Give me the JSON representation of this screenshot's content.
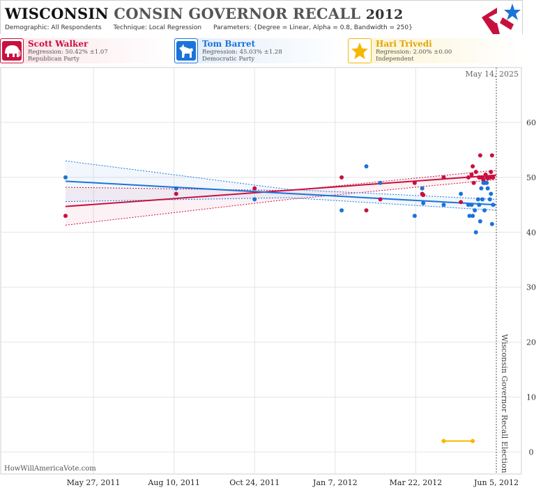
{
  "header": {
    "title_part1": "WISCONSIN",
    "title_part2": "CONSIN GOVERNOR RECALL",
    "title_part3": "2012",
    "demographic": "Demographic: All Respondents",
    "technique": "Technique: Local Regression",
    "parameters": "Parameters: {Degree = Linear, Alpha = 0.8, Bandwidth = 250}"
  },
  "candidates": [
    {
      "name": "Scott Walker",
      "regression": "Regression: 50.42% ±1.07",
      "party": "Republican Party",
      "color": "#c8103e",
      "icon": "elephant-icon"
    },
    {
      "name": "Tom Barret",
      "regression": "Regression: 45.03% ±1.28",
      "party": "Democratic Party",
      "color": "#1a73d9",
      "icon": "donkey-icon"
    },
    {
      "name": "Hari Trivedi",
      "regression": "Regression: 2.00% ±0.00",
      "party": "Independent",
      "color": "#f5b800",
      "icon": "star-icon"
    }
  ],
  "credit": "HowWillAmericaVote.com",
  "chart_data": {
    "type": "scatter",
    "title": "",
    "today_label": "May 14, 2025",
    "event_label": "Wisconsin Governor Recall Election",
    "event_date": "2012-06-05",
    "x_range": [
      "2011-05-01",
      "2012-06-05"
    ],
    "x_tick_labels": [
      "May 27, 2011",
      "Aug 10, 2011",
      "Oct 24, 2011",
      "Jan 7, 2012",
      "Mar 22, 2012",
      "Jun 5, 2012"
    ],
    "x_tick_dates": [
      "2011-05-27",
      "2011-08-10",
      "2011-10-24",
      "2012-01-07",
      "2012-03-22",
      "2012-06-05"
    ],
    "y_ticks": [
      0,
      10,
      20,
      30,
      40,
      50,
      60
    ],
    "ylim": [
      -4,
      70
    ],
    "grid": true,
    "series": [
      {
        "name": "Scott Walker",
        "color": "#c8103e",
        "trend": {
          "x": [
            "2011-05-01",
            "2012-06-05"
          ],
          "y": [
            44.7,
            50.4
          ]
        },
        "band_upper": {
          "x": [
            "2011-05-01",
            "2011-11-25",
            "2012-06-05"
          ],
          "y": [
            48.2,
            47.6,
            51.3
          ]
        },
        "band_lower": {
          "x": [
            "2011-05-01",
            "2011-11-25",
            "2012-06-05"
          ],
          "y": [
            41.3,
            46.0,
            49.6
          ]
        },
        "points": [
          {
            "x": "2011-05-01",
            "y": 43
          },
          {
            "x": "2011-08-12",
            "y": 47
          },
          {
            "x": "2011-10-24",
            "y": 48
          },
          {
            "x": "2012-01-13",
            "y": 50
          },
          {
            "x": "2012-02-05",
            "y": 44
          },
          {
            "x": "2012-02-18",
            "y": 46
          },
          {
            "x": "2012-03-21",
            "y": 49
          },
          {
            "x": "2012-03-28",
            "y": 47
          },
          {
            "x": "2012-03-29",
            "y": 46.8
          },
          {
            "x": "2012-04-17",
            "y": 50
          },
          {
            "x": "2012-05-03",
            "y": 45.5
          },
          {
            "x": "2012-05-10",
            "y": 50
          },
          {
            "x": "2012-05-13",
            "y": 50.5
          },
          {
            "x": "2012-05-14",
            "y": 52
          },
          {
            "x": "2012-05-15",
            "y": 49
          },
          {
            "x": "2012-05-17",
            "y": 51
          },
          {
            "x": "2012-05-20",
            "y": 50
          },
          {
            "x": "2012-05-21",
            "y": 54
          },
          {
            "x": "2012-05-22",
            "y": 50
          },
          {
            "x": "2012-05-23",
            "y": 50
          },
          {
            "x": "2012-05-24",
            "y": 49.5
          },
          {
            "x": "2012-05-25",
            "y": 49
          },
          {
            "x": "2012-05-26",
            "y": 50.5
          },
          {
            "x": "2012-05-27",
            "y": 50
          },
          {
            "x": "2012-05-28",
            "y": 49.8
          },
          {
            "x": "2012-05-30",
            "y": 50
          },
          {
            "x": "2012-05-31",
            "y": 51
          },
          {
            "x": "2012-06-01",
            "y": 54
          },
          {
            "x": "2012-06-01",
            "y": 50
          },
          {
            "x": "2012-06-02",
            "y": 50
          }
        ]
      },
      {
        "name": "Tom Barret",
        "color": "#1a73d9",
        "trend": {
          "x": [
            "2011-05-01",
            "2012-06-05"
          ],
          "y": [
            49.3,
            45.0
          ]
        },
        "band_upper": {
          "x": [
            "2011-05-01",
            "2011-11-25",
            "2012-06-05"
          ],
          "y": [
            53.0,
            47.8,
            46.0
          ]
        },
        "band_lower": {
          "x": [
            "2011-05-01",
            "2011-11-25",
            "2012-06-05"
          ],
          "y": [
            45.6,
            46.3,
            44.0
          ]
        },
        "points": [
          {
            "x": "2011-05-01",
            "y": 50
          },
          {
            "x": "2011-08-12",
            "y": 48
          },
          {
            "x": "2011-10-24",
            "y": 46
          },
          {
            "x": "2012-01-13",
            "y": 44
          },
          {
            "x": "2012-02-05",
            "y": 52
          },
          {
            "x": "2012-02-18",
            "y": 49
          },
          {
            "x": "2012-03-21",
            "y": 43
          },
          {
            "x": "2012-03-28",
            "y": 48
          },
          {
            "x": "2012-03-29",
            "y": 45.3
          },
          {
            "x": "2012-04-17",
            "y": 45
          },
          {
            "x": "2012-05-03",
            "y": 47
          },
          {
            "x": "2012-05-10",
            "y": 45
          },
          {
            "x": "2012-05-11",
            "y": 43
          },
          {
            "x": "2012-05-13",
            "y": 45
          },
          {
            "x": "2012-05-14",
            "y": 43
          },
          {
            "x": "2012-05-16",
            "y": 44
          },
          {
            "x": "2012-05-17",
            "y": 40
          },
          {
            "x": "2012-05-19",
            "y": 46
          },
          {
            "x": "2012-05-20",
            "y": 45
          },
          {
            "x": "2012-05-21",
            "y": 42
          },
          {
            "x": "2012-05-22",
            "y": 48
          },
          {
            "x": "2012-05-23",
            "y": 46
          },
          {
            "x": "2012-05-24",
            "y": 49
          },
          {
            "x": "2012-05-25",
            "y": 44
          },
          {
            "x": "2012-05-27",
            "y": 49
          },
          {
            "x": "2012-05-28",
            "y": 48
          },
          {
            "x": "2012-05-30",
            "y": 46
          },
          {
            "x": "2012-05-31",
            "y": 47
          },
          {
            "x": "2012-06-01",
            "y": 41.5
          },
          {
            "x": "2012-06-02",
            "y": 45
          }
        ]
      },
      {
        "name": "Hari Trivedi",
        "color": "#f5b800",
        "trend": {
          "x": [
            "2012-04-17",
            "2012-05-14"
          ],
          "y": [
            2,
            2
          ]
        },
        "points": [
          {
            "x": "2012-04-17",
            "y": 2
          },
          {
            "x": "2012-05-14",
            "y": 2
          }
        ]
      }
    ]
  }
}
